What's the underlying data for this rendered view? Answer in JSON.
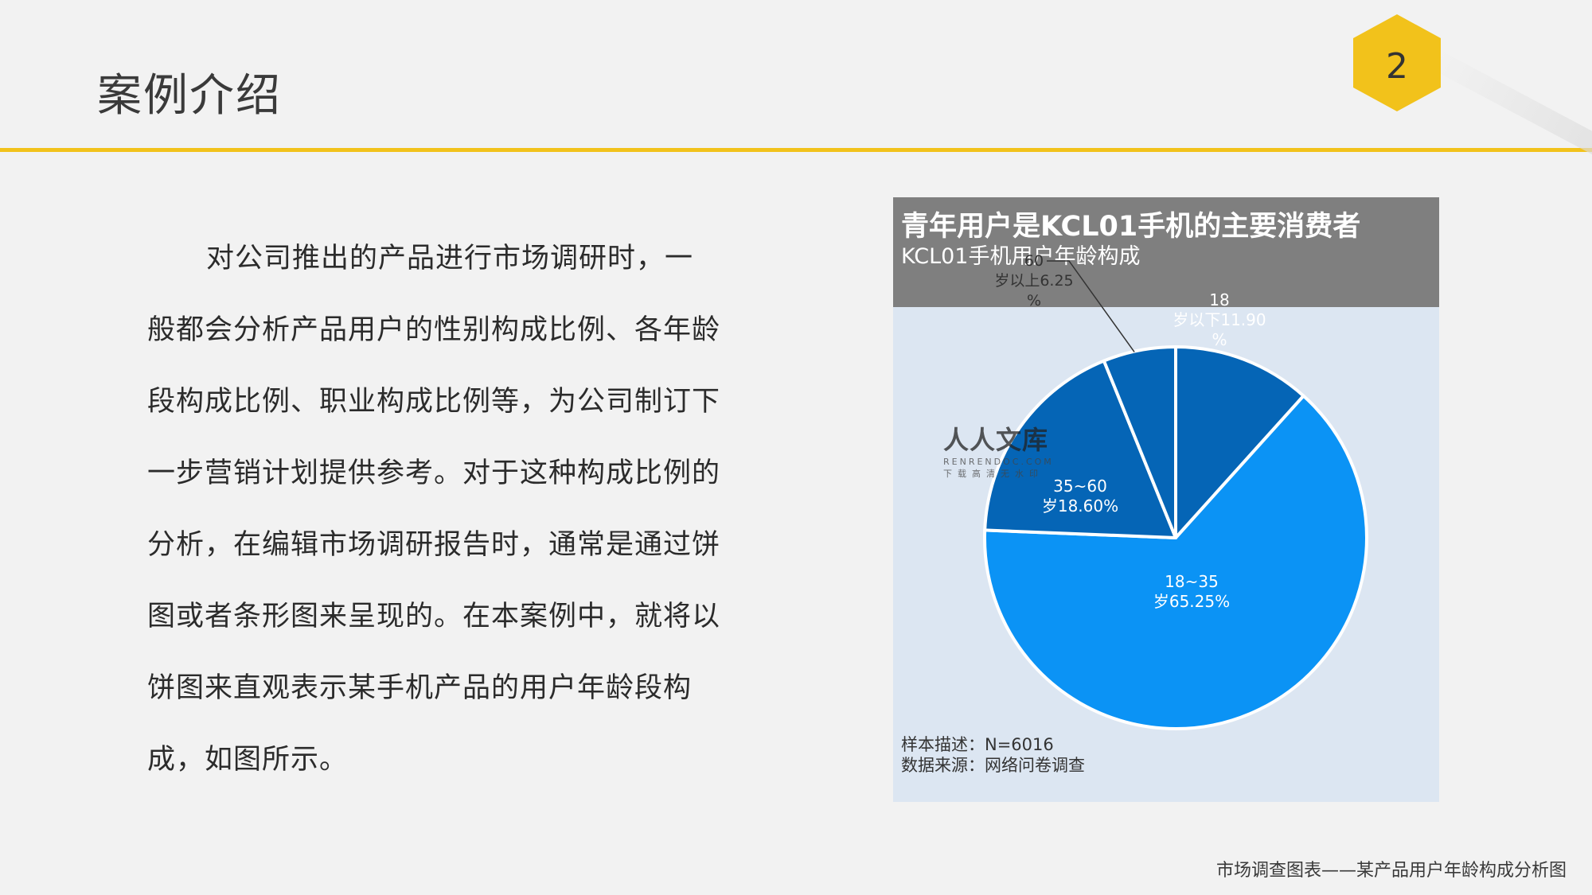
{
  "page": {
    "title": "案例介绍",
    "page_number": "2",
    "accent_color": "#f2c21b",
    "footer": "市场调查图表——某产品用户年龄构成分析图"
  },
  "body": {
    "paragraph": "对公司推出的产品进行市场调研时，一般都会分析产品用户的性别构成比例、各年龄段构成比例、职业构成比例等，为公司制订下一步营销计划提供参考。对于这种构成比例的分析，在编辑市场调研报告时，通常是通过饼图或者条形图来呈现的。在本案例中，就将以饼图来直观表示某手机产品的用户年龄段构成，如图所示。"
  },
  "watermark": {
    "main": "人人文库",
    "sub": "RENRENDOC.COM",
    "sub2": "下载高清无水印"
  },
  "chart_data": {
    "type": "pie",
    "title": "青年用户是KCL01手机的主要消费者",
    "subtitle": "KCL01手机用户年龄构成",
    "unit": "%",
    "slices": [
      {
        "label_lines": [
          "18",
          "岁以下11.90",
          "%"
        ],
        "value": 11.9,
        "color": "#0565b6"
      },
      {
        "label_lines": [
          "18~35",
          "岁65.25%"
        ],
        "value": 65.25,
        "color": "#0b93f5"
      },
      {
        "label_lines": [
          "35~60",
          "岁18.60%"
        ],
        "value": 18.6,
        "color": "#0565b6"
      },
      {
        "label_lines": [
          "60",
          "岁以上6.25",
          "%"
        ],
        "value": 6.25,
        "color": "#0565b6"
      }
    ],
    "notes": [
      "样本描述：N=6016",
      "数据来源：网络问卷调查"
    ],
    "background": "#dce6f2",
    "header_color": "#7f7f7f"
  }
}
